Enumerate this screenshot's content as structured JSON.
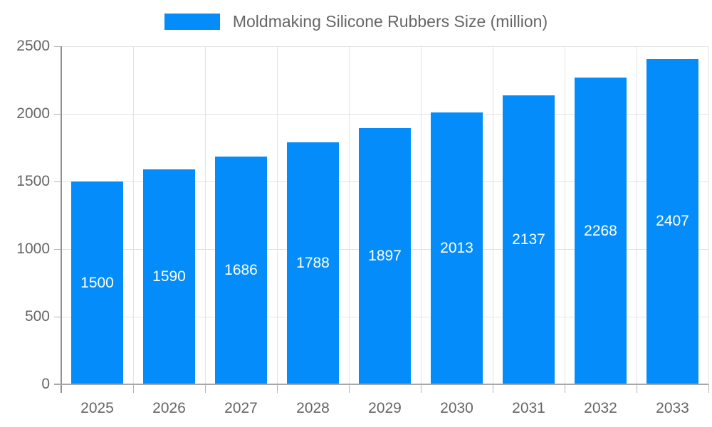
{
  "chart_data": {
    "type": "bar",
    "title": "Moldmaking Silicone Rubbers Size (million)",
    "series_name": "Moldmaking Silicone Rubbers Size (million)",
    "categories": [
      "2025",
      "2026",
      "2027",
      "2028",
      "2029",
      "2030",
      "2031",
      "2032",
      "2033"
    ],
    "values": [
      1500,
      1590,
      1686,
      1788,
      1897,
      2013,
      2137,
      2268,
      2407
    ],
    "xlabel": "",
    "ylabel": "",
    "ylim": [
      0,
      2500
    ],
    "yticks": [
      0,
      500,
      1000,
      1500,
      2000,
      2500
    ],
    "grid": true,
    "legend_position": "top",
    "value_labels": "inside-center"
  },
  "colors": {
    "bar": "#048DFA",
    "value_label": "#ffffff",
    "tick_label": "#666666",
    "legend_text": "#666666",
    "gridline": "#e3e3e3",
    "axis": "#999999",
    "background": "#ffffff"
  }
}
